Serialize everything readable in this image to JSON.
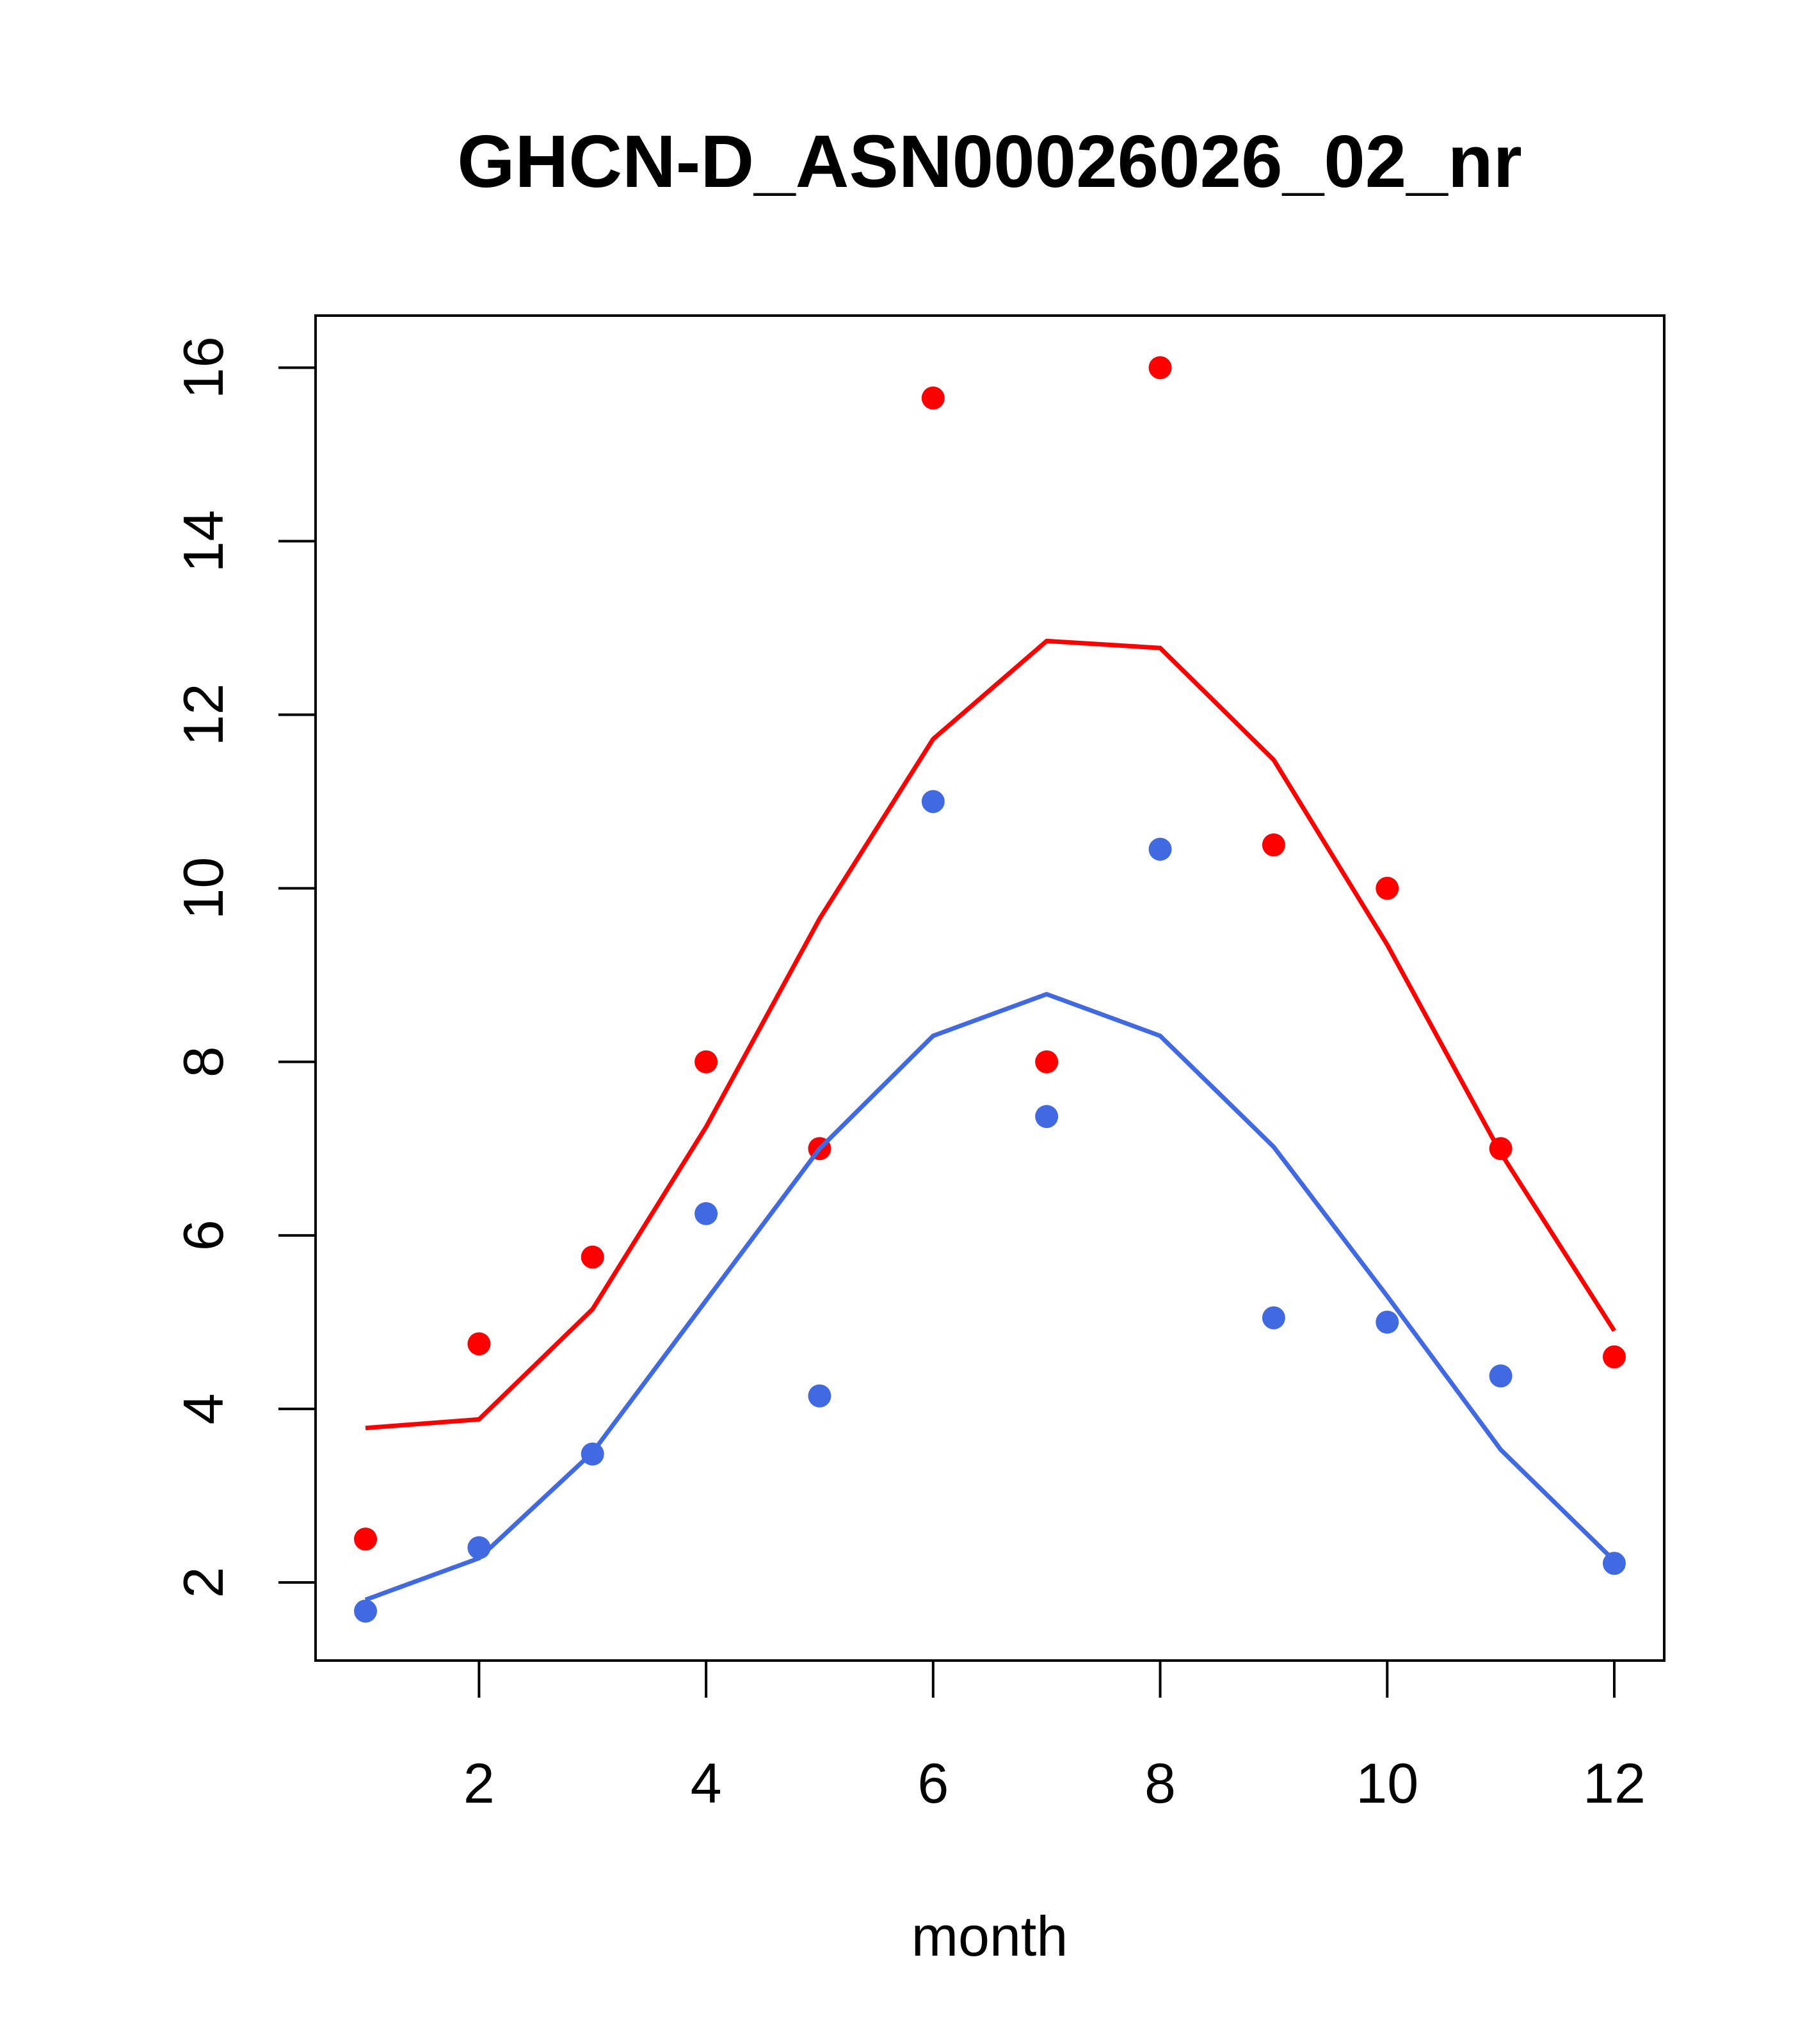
{
  "chart_data": {
    "type": "scatter",
    "title": "GHCN-D_ASN00026026_02_nr",
    "xlabel": "month",
    "ylabel": "",
    "xlim": [
      0.56,
      12.44
    ],
    "ylim": [
      1.1,
      16.6
    ],
    "xticks": [
      2,
      4,
      6,
      8,
      10,
      12
    ],
    "yticks": [
      2,
      4,
      6,
      8,
      10,
      12,
      14,
      16
    ],
    "grid": false,
    "legend": "none",
    "x": [
      1,
      2,
      3,
      4,
      5,
      6,
      7,
      8,
      9,
      10,
      11,
      12
    ],
    "series": [
      {
        "color": "#ff0000",
        "points": [
          2.5,
          4.75,
          5.75,
          8.0,
          7.0,
          15.65,
          8.0,
          16.0,
          10.5,
          10.0,
          7.0,
          4.6
        ],
        "line": [
          3.78,
          3.88,
          5.15,
          7.25,
          9.65,
          11.72,
          12.85,
          12.77,
          11.48,
          9.35,
          6.95,
          4.9
        ]
      },
      {
        "color": "#4169e1",
        "points": [
          1.67,
          2.4,
          3.48,
          6.25,
          4.15,
          11.0,
          7.37,
          10.45,
          5.05,
          5.0,
          4.38,
          2.22
        ],
        "line": [
          1.8,
          2.28,
          3.5,
          5.25,
          7.0,
          8.3,
          8.78,
          8.3,
          7.02,
          5.3,
          3.53,
          2.25
        ]
      }
    ]
  }
}
